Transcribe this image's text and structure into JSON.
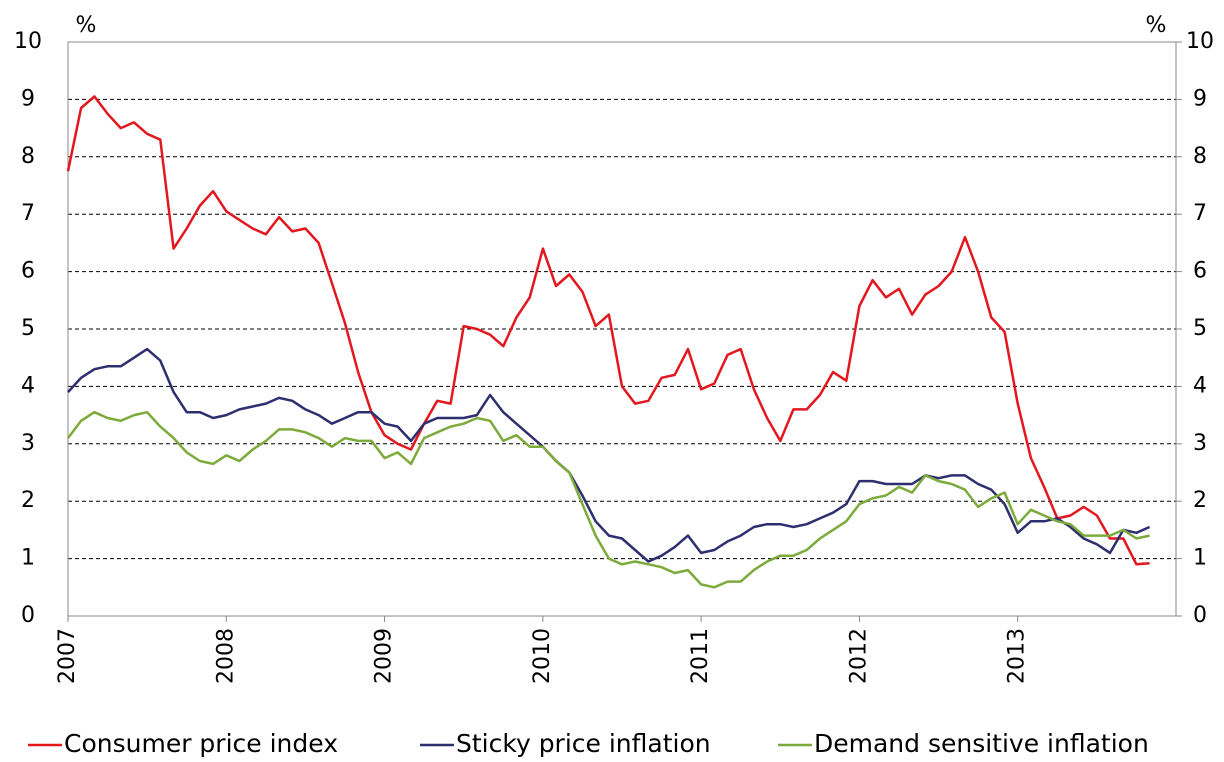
{
  "chart_data": {
    "type": "line",
    "y_label": "%",
    "y2_label": "%",
    "x": [
      2007,
      2007.083,
      2007.167,
      2007.25,
      2007.333,
      2007.417,
      2007.5,
      2007.583,
      2007.667,
      2007.75,
      2007.833,
      2007.917,
      2008,
      2008.083,
      2008.167,
      2008.25,
      2008.333,
      2008.417,
      2008.5,
      2008.583,
      2008.667,
      2008.75,
      2008.833,
      2008.917,
      2009,
      2009.083,
      2009.167,
      2009.25,
      2009.333,
      2009.417,
      2009.5,
      2009.583,
      2009.667,
      2009.75,
      2009.833,
      2009.917,
      2010,
      2010.083,
      2010.167,
      2010.25,
      2010.333,
      2010.417,
      2010.5,
      2010.583,
      2010.667,
      2010.75,
      2010.833,
      2010.917,
      2011,
      2011.083,
      2011.167,
      2011.25,
      2011.333,
      2011.417,
      2011.5,
      2011.583,
      2011.667,
      2011.75,
      2011.833,
      2011.917,
      2012,
      2012.083,
      2012.167,
      2012.25,
      2012.333,
      2012.417,
      2012.5,
      2012.583,
      2012.667,
      2012.75,
      2012.833,
      2012.917,
      2013,
      2013.083,
      2013.167,
      2013.25,
      2013.333,
      2013.417,
      2013.5,
      2013.583,
      2013.667,
      2013.75,
      2013.833
    ],
    "series": [
      {
        "name": "Consumer price index",
        "color": "#e3171e",
        "values": [
          7.75,
          8.85,
          9.05,
          8.75,
          8.5,
          8.6,
          8.4,
          8.3,
          6.4,
          6.75,
          7.15,
          7.4,
          7.05,
          6.9,
          6.75,
          6.65,
          6.95,
          6.7,
          6.75,
          6.5,
          5.8,
          5.1,
          4.25,
          3.55,
          3.15,
          3.0,
          2.9,
          3.35,
          3.75,
          3.7,
          5.05,
          5.0,
          4.9,
          4.7,
          5.2,
          5.55,
          6.4,
          5.75,
          5.95,
          5.65,
          5.05,
          5.25,
          4.0,
          3.7,
          3.75,
          4.15,
          4.2,
          4.65,
          3.95,
          4.05,
          4.55,
          4.65,
          3.95,
          3.45,
          3.05,
          3.6,
          3.6,
          3.85,
          4.25,
          4.1,
          5.4,
          5.85,
          5.55,
          5.7,
          5.25,
          5.6,
          5.75,
          6.0,
          6.6,
          6.0,
          5.2,
          4.95,
          3.7,
          2.75,
          2.25,
          1.7,
          1.75,
          1.9,
          1.75,
          1.35,
          1.35,
          0.9,
          0.92
        ]
      },
      {
        "name": "Sticky price inflation",
        "color": "#2e2f6e",
        "values": [
          3.9,
          4.15,
          4.3,
          4.35,
          4.35,
          4.5,
          4.65,
          4.45,
          3.9,
          3.55,
          3.55,
          3.45,
          3.5,
          3.6,
          3.65,
          3.7,
          3.8,
          3.75,
          3.6,
          3.5,
          3.35,
          3.45,
          3.55,
          3.55,
          3.35,
          3.3,
          3.05,
          3.35,
          3.45,
          3.45,
          3.45,
          3.5,
          3.85,
          3.55,
          3.35,
          3.15,
          2.95,
          2.7,
          2.5,
          2.1,
          1.65,
          1.4,
          1.35,
          1.15,
          0.95,
          1.05,
          1.2,
          1.4,
          1.1,
          1.15,
          1.3,
          1.4,
          1.55,
          1.6,
          1.6,
          1.55,
          1.6,
          1.7,
          1.8,
          1.95,
          2.35,
          2.35,
          2.3,
          2.3,
          2.3,
          2.45,
          2.4,
          2.45,
          2.45,
          2.3,
          2.2,
          1.95,
          1.45,
          1.65,
          1.65,
          1.7,
          1.55,
          1.35,
          1.25,
          1.1,
          1.5,
          1.45,
          1.55
        ]
      },
      {
        "name": "Demand sensitive inflation",
        "color": "#7cab3c",
        "values": [
          3.1,
          3.4,
          3.55,
          3.45,
          3.4,
          3.5,
          3.55,
          3.3,
          3.1,
          2.85,
          2.7,
          2.65,
          2.8,
          2.7,
          2.9,
          3.05,
          3.25,
          3.25,
          3.2,
          3.1,
          2.95,
          3.1,
          3.05,
          3.05,
          2.75,
          2.85,
          2.65,
          3.1,
          3.2,
          3.3,
          3.35,
          3.45,
          3.4,
          3.05,
          3.15,
          2.95,
          2.95,
          2.7,
          2.5,
          1.95,
          1.4,
          1.0,
          0.9,
          0.95,
          0.9,
          0.85,
          0.75,
          0.8,
          0.55,
          0.5,
          0.6,
          0.6,
          0.8,
          0.95,
          1.05,
          1.05,
          1.15,
          1.35,
          1.5,
          1.65,
          1.95,
          2.05,
          2.1,
          2.25,
          2.15,
          2.45,
          2.35,
          2.3,
          2.2,
          1.9,
          2.05,
          2.15,
          1.6,
          1.85,
          1.75,
          1.65,
          1.6,
          1.4,
          1.4,
          1.4,
          1.5,
          1.35,
          1.4
        ]
      }
    ],
    "xlim": [
      2007,
      2014
    ],
    "xticks": [
      2007,
      2008,
      2009,
      2010,
      2011,
      2012,
      2013
    ],
    "ylim": [
      0,
      10
    ],
    "yticks": [
      0,
      1,
      2,
      3,
      4,
      5,
      6,
      7,
      8,
      9,
      10
    ],
    "y2lim": [
      0,
      10
    ],
    "y2ticks": [
      0,
      1,
      2,
      3,
      4,
      5,
      6,
      7,
      8,
      9,
      10
    ],
    "grid": true,
    "legend": "bottom"
  }
}
